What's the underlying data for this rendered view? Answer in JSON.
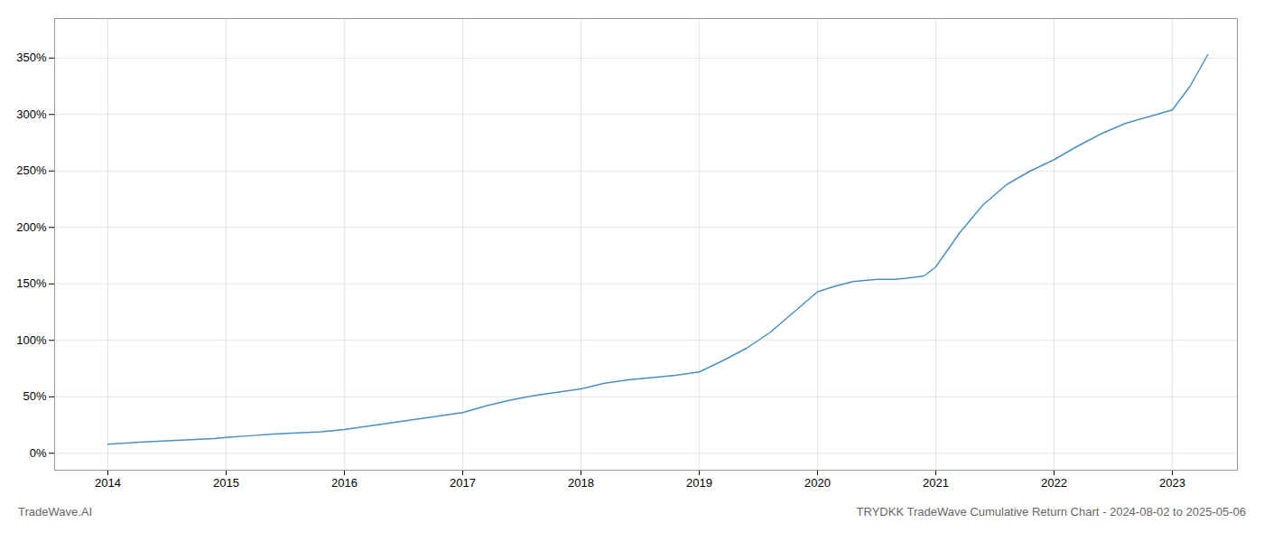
{
  "chart_data": {
    "type": "line",
    "title": "TRYDKK TradeWave Cumulative Return Chart - 2024-08-02 to 2025-05-06",
    "annotations": [
      "TradeWave.AI"
    ],
    "color": "#4a90c4",
    "x": [
      2014.0,
      2014.15,
      2014.3,
      2014.5,
      2014.7,
      2014.9,
      2015.0,
      2015.2,
      2015.4,
      2015.6,
      2015.8,
      2016.0,
      2016.2,
      2016.4,
      2016.6,
      2016.8,
      2017.0,
      2017.2,
      2017.4,
      2017.6,
      2017.8,
      2018.0,
      2018.2,
      2018.4,
      2018.6,
      2018.8,
      2019.0,
      2019.2,
      2019.4,
      2019.6,
      2019.8,
      2020.0,
      2020.15,
      2020.3,
      2020.5,
      2020.65,
      2020.75,
      2020.9,
      2021.0,
      2021.2,
      2021.4,
      2021.6,
      2021.8,
      2022.0,
      2022.2,
      2022.4,
      2022.6,
      2022.8,
      2023.0,
      2023.15,
      2023.3
    ],
    "values": [
      8,
      9,
      10,
      11,
      12,
      13,
      14,
      15.5,
      17,
      18,
      19,
      21,
      24,
      27,
      30,
      33,
      36,
      42,
      47,
      51,
      54,
      57,
      62,
      65,
      67,
      69,
      72,
      82,
      93,
      107,
      125,
      143,
      148,
      152,
      154,
      154,
      155,
      157,
      165,
      195,
      220,
      238,
      250,
      260,
      272,
      283,
      292,
      298,
      304,
      325,
      353
    ],
    "xlim": [
      2013.55,
      2023.55
    ],
    "xticks": [
      2014,
      2015,
      2016,
      2017,
      2018,
      2019,
      2020,
      2021,
      2022,
      2023
    ],
    "ylim": [
      -15,
      385
    ],
    "yticks": [
      {
        "value": 0,
        "label": "0%"
      },
      {
        "value": 50,
        "label": "50%"
      },
      {
        "value": 100,
        "label": "100%"
      },
      {
        "value": 150,
        "label": "150%"
      },
      {
        "value": 200,
        "label": "200%"
      },
      {
        "value": 250,
        "label": "250%"
      },
      {
        "value": 300,
        "label": "300%"
      },
      {
        "value": 350,
        "label": "350%"
      }
    ],
    "grid": true
  }
}
